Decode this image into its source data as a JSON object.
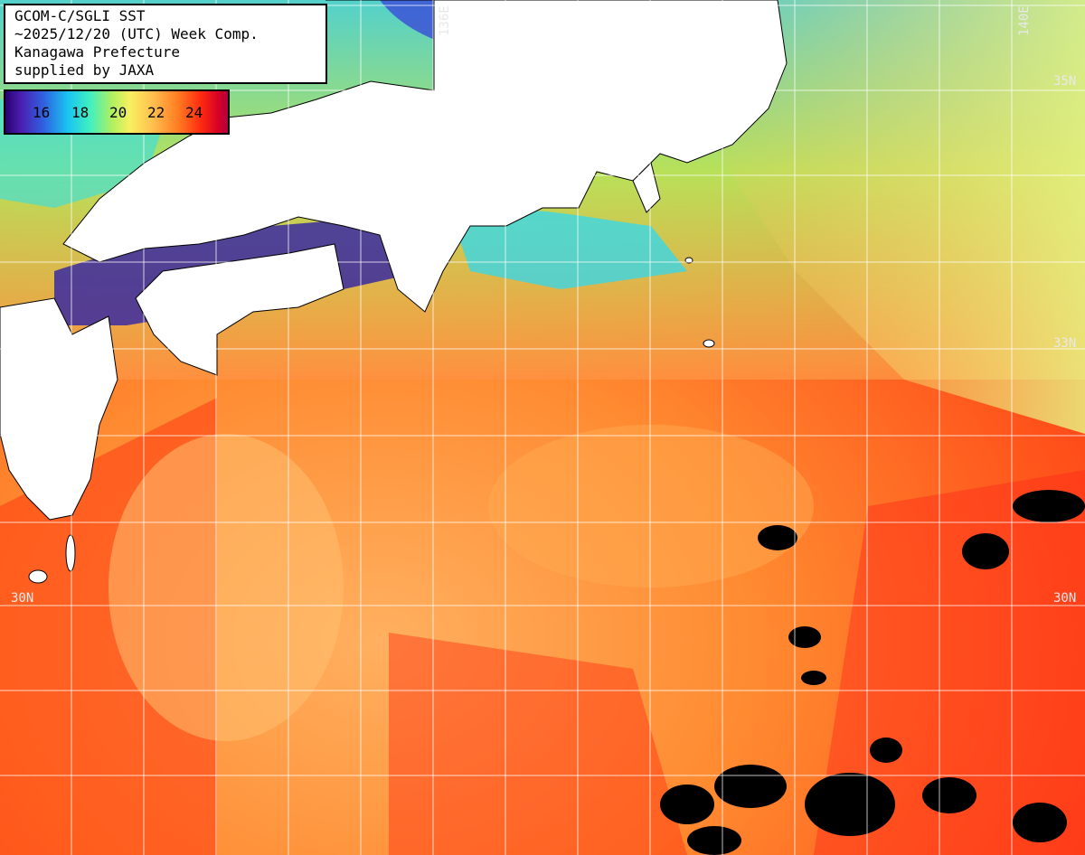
{
  "title": {
    "line1": "GCOM-C/SGLI SST",
    "line2": "~2025/12/20 (UTC) Week Comp.",
    "line3": "Kanagawa Prefecture",
    "line4": "supplied by JAXA"
  },
  "legend": {
    "ticks": [
      "16",
      "18",
      "20",
      "22",
      "24"
    ],
    "colors": {
      "cold": "#4a1fb0",
      "cool": "#19c4f0",
      "mid": "#b0f060",
      "warm": "#ff7a20",
      "hot": "#d40028"
    }
  },
  "grid_labels": {
    "lon_136e": "136E",
    "lon_140e": "140E",
    "lat_35n_right": "35N",
    "lat_33n_right": "33N",
    "lat_30n_left": "30N",
    "lat_30n_right": "30N"
  },
  "colors": {
    "land": "#ffffff",
    "grid": "#ffffff",
    "cloud_mask": "#000000"
  }
}
